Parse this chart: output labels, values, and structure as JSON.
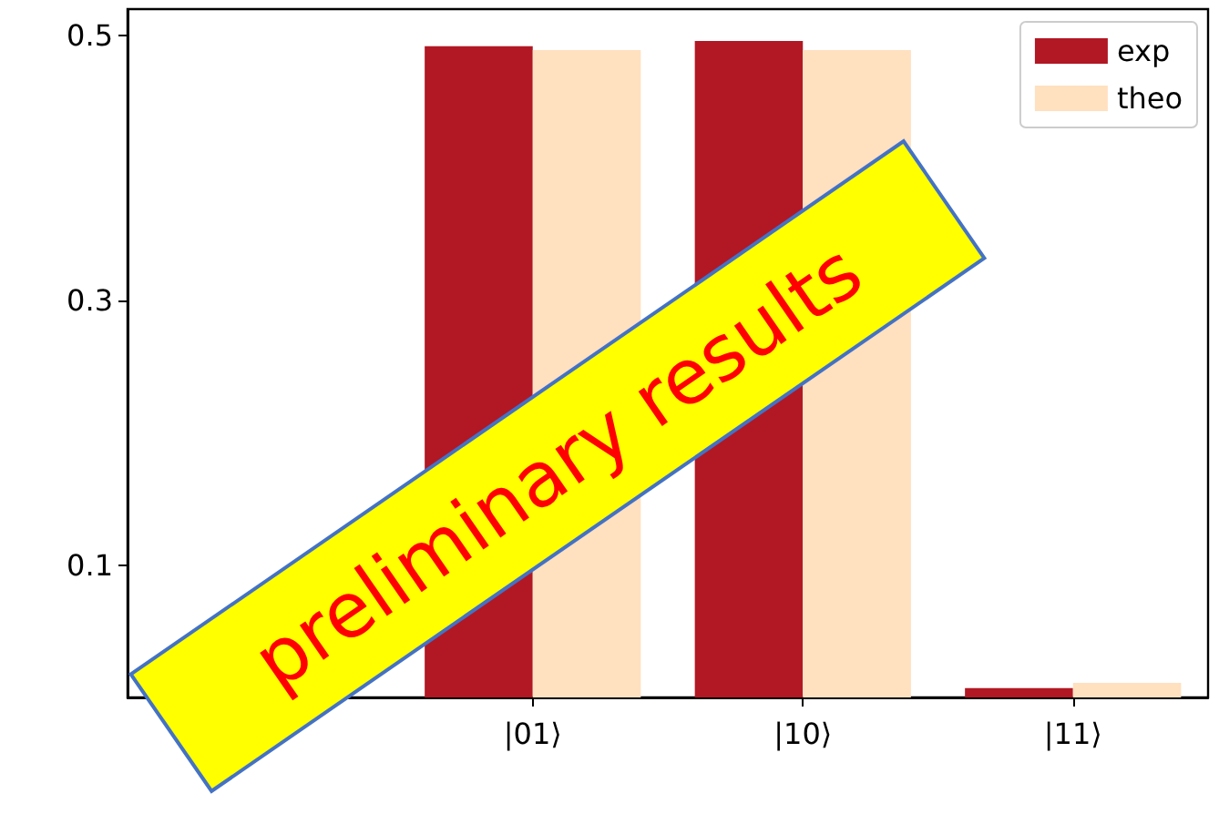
{
  "chart_data": {
    "type": "bar",
    "categories": [
      null,
      "|01⟩",
      "|10⟩",
      "|11⟩"
    ],
    "series": [
      {
        "name": "exp",
        "color": "#b11823",
        "values": [
          null,
          0.492,
          0.496,
          0.007
        ]
      },
      {
        "name": "theo",
        "color": "#ffe0bf",
        "values": [
          null,
          0.489,
          0.489,
          0.011
        ]
      }
    ],
    "ylim": [
      0,
      0.52
    ],
    "yticks": [
      0.1,
      0.3,
      0.5
    ],
    "grid": false,
    "legend": "top right",
    "annotations": [
      "preliminary results"
    ]
  }
}
